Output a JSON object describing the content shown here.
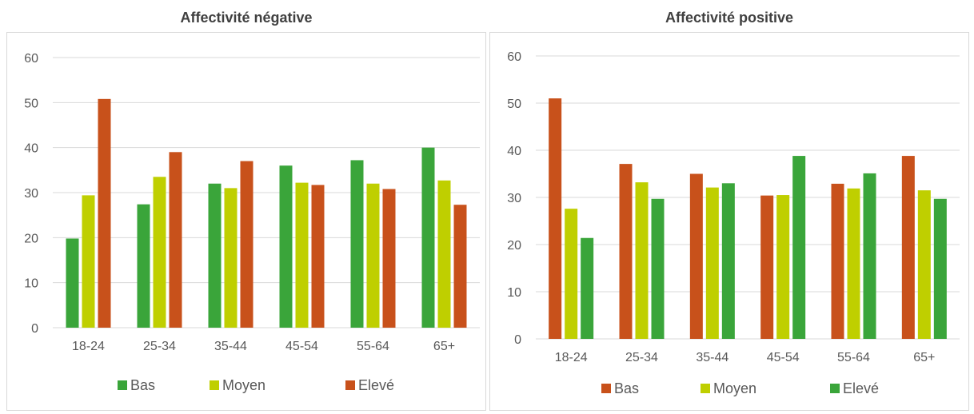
{
  "chart_data": [
    {
      "type": "bar",
      "title": "Affectivité négative",
      "categories": [
        "18-24",
        "25-34",
        "35-44",
        "45-54",
        "55-64",
        "65+"
      ],
      "ylim": [
        0,
        60
      ],
      "yticks": [
        0,
        10,
        20,
        30,
        40,
        50,
        60
      ],
      "grid": true,
      "legend": "bottom",
      "series": [
        {
          "name": "Bas",
          "color": "#3aa53a",
          "values": [
            19.8,
            27.4,
            32,
            36,
            37.2,
            40
          ]
        },
        {
          "name": "Moyen",
          "color": "#bfcf00",
          "values": [
            29.4,
            33.5,
            31,
            32.2,
            32,
            32.7
          ]
        },
        {
          "name": "Elevé",
          "color": "#c8511b",
          "values": [
            50.8,
            39,
            37,
            31.7,
            30.8,
            27.3
          ]
        }
      ]
    },
    {
      "type": "bar",
      "title": "Affectivité positive",
      "categories": [
        "18-24",
        "25-34",
        "35-44",
        "45-54",
        "55-64",
        "65+"
      ],
      "ylim": [
        0,
        60
      ],
      "yticks": [
        0,
        10,
        20,
        30,
        40,
        50,
        60
      ],
      "grid": true,
      "legend": "bottom",
      "series": [
        {
          "name": "Bas",
          "color": "#c8511b",
          "values": [
            51,
            37.1,
            35,
            30.4,
            32.9,
            38.8
          ]
        },
        {
          "name": "Moyen",
          "color": "#bfcf00",
          "values": [
            27.6,
            33.2,
            32.1,
            30.5,
            31.9,
            31.5
          ]
        },
        {
          "name": "Elevé",
          "color": "#3aa53a",
          "values": [
            21.4,
            29.7,
            33,
            38.8,
            35.1,
            29.7
          ]
        }
      ]
    }
  ]
}
